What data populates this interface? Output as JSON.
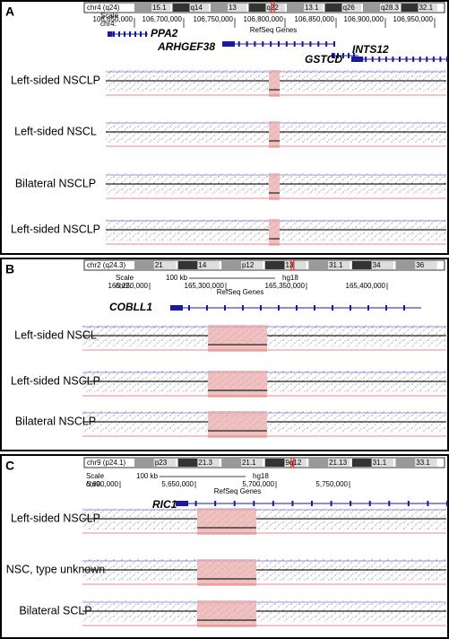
{
  "panels": [
    {
      "label": "A",
      "ideogram": {
        "chromosome": "chr4 (q24)",
        "bands": [
          "15.1",
          "q14",
          "13",
          "q22",
          "13.1",
          "q26",
          "q28.3",
          "32.1"
        ]
      },
      "scale": {
        "label": "Scale",
        "chrom": "chr4:",
        "ticks": [
          "106,650,000",
          "106,700,000",
          "106,750,000",
          "106,800,000",
          "106,850,000",
          "106,900,000",
          "106,950,000"
        ]
      },
      "gene_track": "RefSeq Genes",
      "genes": [
        "PPA2",
        "ARHGEF38",
        "GSTCD",
        "INTS12"
      ],
      "tracks": [
        "Left-sided NSCLP",
        "Left-sided NSCL",
        "Bilateral NSCLP",
        "Left-sided NSCLP"
      ]
    },
    {
      "label": "B",
      "ideogram": {
        "chromosome": "chr2 (q24.3)",
        "bands": [
          "21",
          "14",
          "p12",
          "13",
          "31.1",
          "34",
          "36"
        ]
      },
      "scale": {
        "label": "Scale",
        "chrom": "chr2:",
        "size": "100 kb",
        "build": "hg18",
        "ticks": [
          "165,250,000",
          "165,300,000",
          "165,350,000",
          "165,400,000"
        ]
      },
      "gene_track": "RefSeq Genes",
      "genes": [
        "COBLL1"
      ],
      "tracks": [
        "Left-sided NSCL",
        "Left-sided NSCLP",
        "Bilateral NSCLP"
      ]
    },
    {
      "label": "C",
      "ideogram": {
        "chromosome": "chr9 (p24.1)",
        "bands": [
          "p23",
          "21.3",
          "21.1",
          "9q12",
          "21.13",
          "31.1",
          "33.1"
        ]
      },
      "scale": {
        "label": "Scale",
        "chrom": "chr9:",
        "size": "100 kb",
        "build": "hg18",
        "ticks": [
          "5,600,000",
          "5,650,000",
          "5,700,000",
          "5,750,000"
        ]
      },
      "gene_track": "RefSeq Genes",
      "genes": [
        "RIC1"
      ],
      "tracks": [
        "Left-sided NSCLP",
        "NSC, type unknown",
        "Bilateral SCLP"
      ]
    }
  ]
}
